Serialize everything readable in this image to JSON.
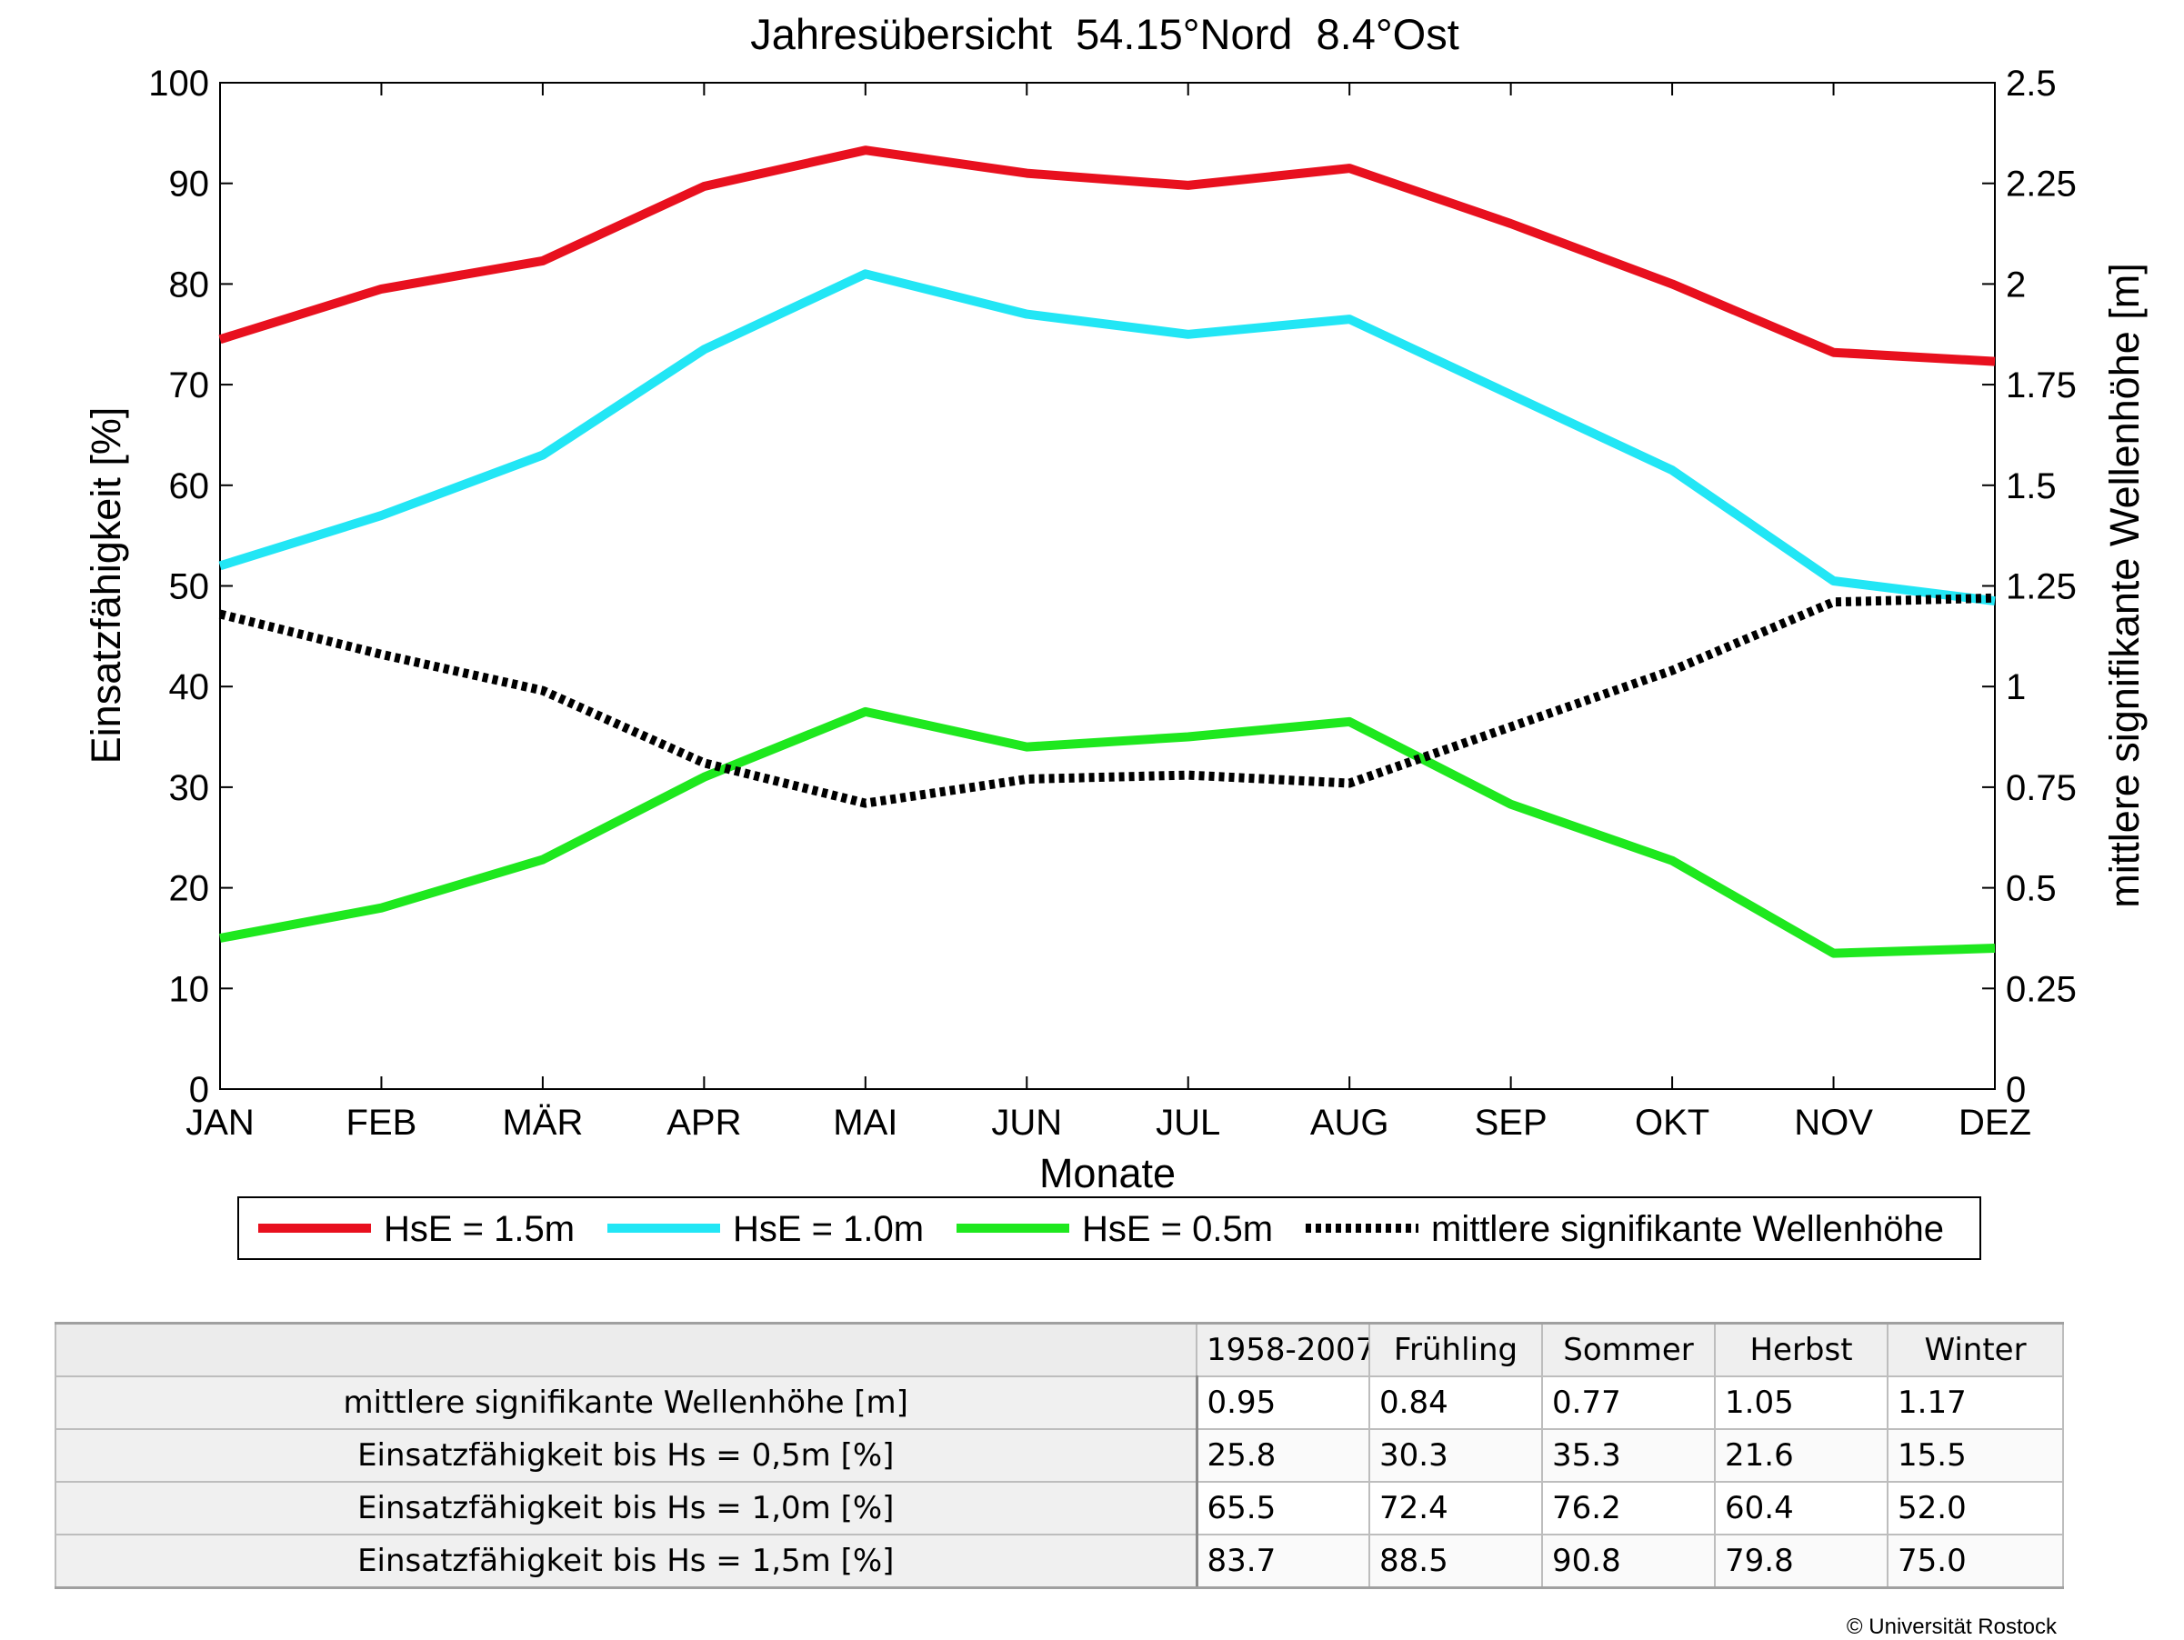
{
  "chart_data": {
    "type": "line",
    "title": "Jahresübersicht  54.15°Nord  8.4°Ost",
    "xlabel": "Monate",
    "ylabel": "Einsatzfähigkeit [%]",
    "y2label": "mittlere signifikante Wellenhöhe [m]",
    "categories": [
      "JAN",
      "FEB",
      "MÄR",
      "APR",
      "MAI",
      "JUN",
      "JUL",
      "AUG",
      "SEP",
      "OKT",
      "NOV",
      "DEZ"
    ],
    "ylim": [
      0,
      100
    ],
    "yticks": [
      "0",
      "10",
      "20",
      "30",
      "40",
      "50",
      "60",
      "70",
      "80",
      "90",
      "100"
    ],
    "y2lim": [
      0,
      2.5
    ],
    "y2ticks": [
      "0",
      "0.25",
      "0.5",
      "0.75",
      "1",
      "1.25",
      "1.5",
      "1.75",
      "2",
      "2.25",
      "2.5"
    ],
    "grid": false,
    "legend_position": "bottom",
    "series": [
      {
        "name": "HsE = 1.5m",
        "axis": "left",
        "color": "#e8101e",
        "style": "solid",
        "values": [
          74.5,
          79.5,
          82.3,
          89.7,
          93.3,
          91.0,
          89.8,
          91.5,
          86.0,
          80.0,
          73.2,
          72.3
        ]
      },
      {
        "name": "HsE = 1.0m",
        "axis": "left",
        "color": "#22e6f5",
        "style": "solid",
        "values": [
          52.0,
          57.0,
          63.0,
          73.5,
          81.0,
          77.0,
          75.0,
          76.5,
          69.0,
          61.5,
          50.5,
          48.5
        ]
      },
      {
        "name": "HsE = 0.5m",
        "axis": "left",
        "color": "#1ee81e",
        "style": "solid",
        "values": [
          15.0,
          18.0,
          22.8,
          31.0,
          37.5,
          34.0,
          35.0,
          36.5,
          28.3,
          22.7,
          13.5,
          14.0
        ]
      },
      {
        "name": "mittlere signifikante Wellenhöhe",
        "axis": "right",
        "color": "#000000",
        "style": "dotted",
        "values": [
          1.18,
          1.08,
          0.99,
          0.81,
          0.71,
          0.77,
          0.78,
          0.76,
          0.9,
          1.04,
          1.21,
          1.22
        ]
      }
    ]
  },
  "table": {
    "header": [
      "",
      "1958-2007",
      "Frühling",
      "Sommer",
      "Herbst",
      "Winter"
    ],
    "rows": [
      {
        "label": "mittlere signifikante Wellenhöhe [m]",
        "values": [
          "0.95",
          "0.84",
          "0.77",
          "1.05",
          "1.17"
        ]
      },
      {
        "label": "Einsatzfähigkeit bis Hs = 0,5m [%]",
        "values": [
          "25.8",
          "30.3",
          "35.3",
          "21.6",
          "15.5"
        ]
      },
      {
        "label": "Einsatzfähigkeit bis Hs = 1,0m [%]",
        "values": [
          "65.5",
          "72.4",
          "76.2",
          "60.4",
          "52.0"
        ]
      },
      {
        "label": "Einsatzfähigkeit bis Hs = 1,5m [%]",
        "values": [
          "83.7",
          "88.5",
          "90.8",
          "79.8",
          "75.0"
        ]
      }
    ]
  },
  "footer": {
    "copyright": "© Universität Rostock"
  }
}
